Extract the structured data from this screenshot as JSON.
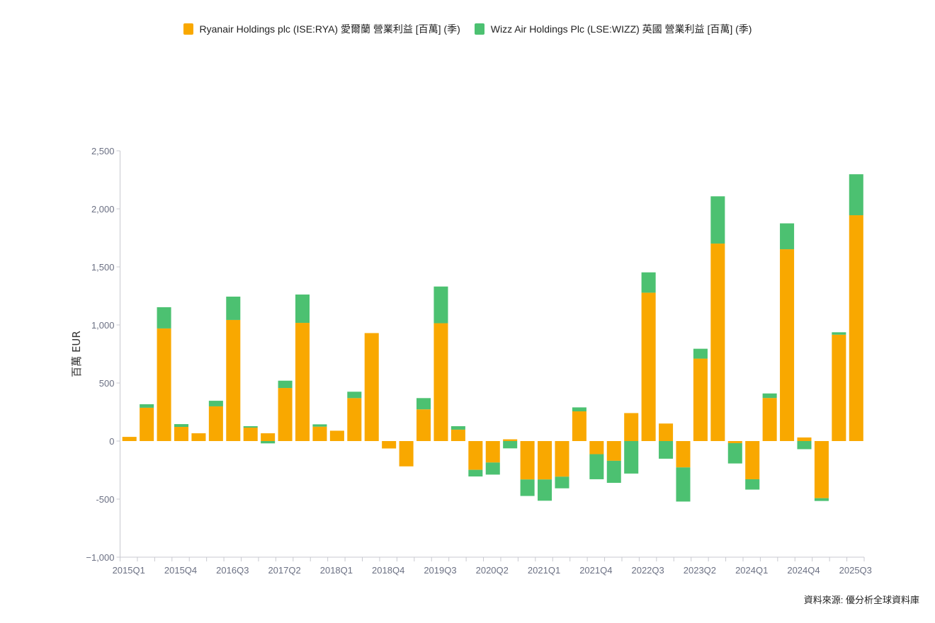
{
  "legend": [
    {
      "label": "Ryanair Holdings plc (ISE:RYA) 愛爾蘭 營業利益 [百萬] (季)",
      "color": "#f9a800"
    },
    {
      "label": "Wizz Air Holdings Plc (LSE:WIZZ) 英國 營業利益 [百萬] (季)",
      "color": "#4cc171"
    }
  ],
  "source": "資料來源: 優分析全球資料庫",
  "chart_data": {
    "type": "bar",
    "stacked": true,
    "title": "",
    "xlabel": "",
    "ylabel": "百萬 EUR",
    "ylim": [
      -1000,
      2500
    ],
    "yticks": [
      -1000,
      -500,
      0,
      500,
      1000,
      1500,
      2000,
      2500
    ],
    "ytick_labels": [
      "−1,000",
      "-500",
      "0",
      "500",
      "1,000",
      "1,500",
      "2,000",
      "2,500"
    ],
    "grid": false,
    "legend_position": "top-center",
    "categories": [
      "2015Q1",
      "2015Q2",
      "2015Q3",
      "2015Q4",
      "2016Q1",
      "2016Q2",
      "2016Q3",
      "2016Q4",
      "2017Q1",
      "2017Q2",
      "2017Q3",
      "2017Q4",
      "2018Q1",
      "2018Q2",
      "2018Q3",
      "2018Q4",
      "2019Q1",
      "2019Q2",
      "2019Q3",
      "2019Q4",
      "2020Q1",
      "2020Q2",
      "2020Q3",
      "2020Q4",
      "2021Q1",
      "2021Q2",
      "2021Q3",
      "2021Q4",
      "2022Q1",
      "2022Q2",
      "2022Q3",
      "2022Q4",
      "2023Q1",
      "2023Q2",
      "2023Q3",
      "2023Q4",
      "2024Q1",
      "2024Q2",
      "2024Q3",
      "2024Q4",
      "2025Q1",
      "2025Q2",
      "2025Q3"
    ],
    "xtick_labels": [
      "2015Q1",
      "2015Q4",
      "2016Q3",
      "2017Q2",
      "2018Q1",
      "2018Q4",
      "2019Q3",
      "2020Q2",
      "2021Q1",
      "2021Q4",
      "2022Q3",
      "2023Q2",
      "2024Q1",
      "2024Q4",
      "2025Q3"
    ],
    "series": [
      {
        "name": "Ryanair Holdings plc (ISE:RYA) 愛爾蘭 營業利益 [百萬] (季)",
        "color": "#f9a800",
        "values": [
          36,
          287,
          970,
          122,
          67,
          299,
          1043,
          116,
          67,
          457,
          1018,
          124,
          89,
          370,
          930,
          -64,
          -218,
          273,
          1015,
          98,
          -248,
          -185,
          15,
          -331,
          -331,
          -307,
          256,
          -113,
          -170,
          241,
          1278,
          151,
          -227,
          710,
          1701,
          -18,
          -329,
          371,
          1652,
          31,
          -492,
          916,
          1945
        ]
      },
      {
        "name": "Wizz Air Holdings Plc (LSE:WIZZ) 英國 營業利益 [百萬] (季)",
        "color": "#4cc171",
        "values": [
          0,
          30,
          183,
          24,
          0,
          48,
          201,
          12,
          -20,
          63,
          244,
          20,
          0,
          55,
          0,
          0,
          0,
          97,
          316,
          30,
          -57,
          -104,
          -63,
          -142,
          -183,
          -100,
          34,
          -216,
          -190,
          -280,
          175,
          -152,
          -294,
          85,
          407,
          -175,
          -89,
          39,
          223,
          -70,
          -24,
          21,
          353
        ]
      }
    ]
  }
}
